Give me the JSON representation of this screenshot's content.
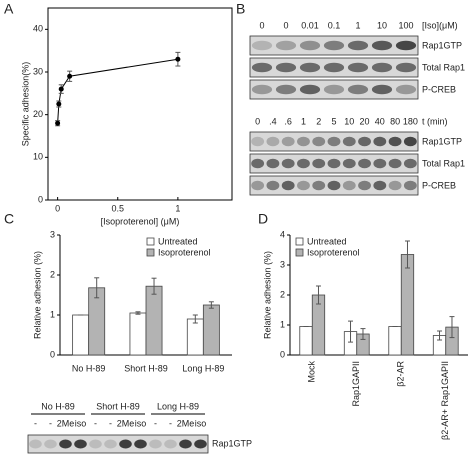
{
  "panels": [
    "A",
    "B",
    "C",
    "D"
  ],
  "chart_data": [
    {
      "type": "line",
      "x": [
        0,
        0.01,
        0.03,
        0.1,
        1
      ],
      "values": [
        18,
        22.5,
        26,
        29,
        33
      ],
      "errors": [
        0.6,
        0.7,
        1,
        1.2,
        1.6
      ],
      "color": "#000000",
      "xlim": [
        -0.08,
        1.45
      ],
      "xticks": [
        0,
        0.5,
        1
      ],
      "ylim": [
        0,
        45
      ],
      "yticks": [
        0,
        10,
        20,
        30,
        40
      ],
      "xlabel": "[Isoproterenol] (μM)",
      "ylabel": "Specific adhesion(%)"
    },
    {
      "type": "bar",
      "categories": [
        "No H-89",
        "Short H-89",
        "Long H-89"
      ],
      "series": [
        {
          "name": "Untreated",
          "color": "#ffffff",
          "values": [
            1,
            1.05,
            0.9
          ],
          "errors": [
            0,
            0.03,
            0.1
          ]
        },
        {
          "name": "Isoproterenol",
          "color": "#b3b3b3",
          "values": [
            1.68,
            1.72,
            1.25
          ],
          "errors": [
            0.25,
            0.2,
            0.08
          ]
        }
      ],
      "ylim": [
        0,
        3
      ],
      "yticks": [
        0,
        1,
        2,
        3
      ],
      "ylabel": "Relative adhesion (%)",
      "legend": "upper-right",
      "rotate_labels": false
    },
    {
      "type": "bar",
      "categories": [
        "Mock",
        "Rap1GAPII",
        "β2-AR",
        "β2-AR+ Rap1GAPII"
      ],
      "series": [
        {
          "name": "Untreated",
          "color": "#ffffff",
          "values": [
            0.95,
            0.78,
            0.95,
            0.65
          ],
          "errors": [
            0,
            0.35,
            0,
            0.15
          ]
        },
        {
          "name": "Isoproterenol",
          "color": "#b3b3b3",
          "values": [
            2.0,
            0.7,
            3.35,
            0.93
          ],
          "errors": [
            0.3,
            0.18,
            0.45,
            0.35
          ]
        }
      ],
      "ylim": [
        0,
        4
      ],
      "yticks": [
        0,
        1,
        2,
        3,
        4
      ],
      "ylabel": "Relative adhesion (%)",
      "legend": "upper-left",
      "rotate_labels": true
    }
  ],
  "blot_b": {
    "top": {
      "header": "[Iso](μM)",
      "lanes": [
        "0",
        "0",
        "0.01",
        "0.1",
        "1",
        "10",
        "100"
      ],
      "rows": [
        "Rap1GTP",
        "Total Rap1",
        "P-CREB"
      ]
    },
    "bottom": {
      "header": "t (min)",
      "lanes": [
        "0",
        ".4",
        ".6",
        "1",
        "2",
        "5",
        "10",
        "20",
        "40",
        "80",
        "180"
      ],
      "rows": [
        "Rap1GTP",
        "Total Rap1",
        "P-CREB"
      ]
    }
  },
  "blot_c": {
    "groups": [
      "No H-89",
      "Short H-89",
      "Long H-89"
    ],
    "lanes": [
      "-",
      "-",
      "2Me",
      "iso",
      "-",
      "-",
      "2Me",
      "iso",
      "-",
      "-",
      "2Me",
      "iso"
    ],
    "row": "Rap1GTP"
  }
}
